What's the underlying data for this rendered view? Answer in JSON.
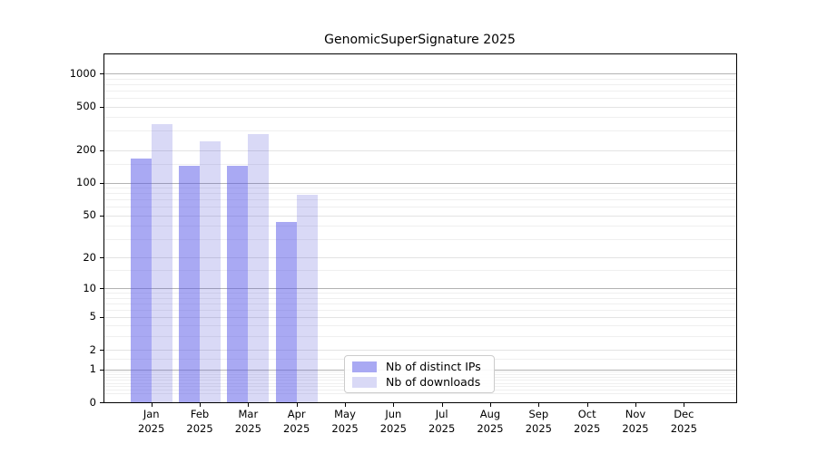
{
  "title": "GenomicSuperSignature 2025",
  "colors": {
    "bar_ips_fill": "rgba(83,83,231,0.5)",
    "bar_downloads_fill": "rgba(65,65,210,0.2)",
    "legend_swatch_ips": "#a9a9f3",
    "legend_swatch_downloads": "#d9d9f6",
    "grid_major": "#b3b3b3",
    "grid_mid": "#e3e3e3",
    "grid_minor": "#efefef",
    "axis": "#000000"
  },
  "legend": {
    "items": [
      {
        "label": "Nb of distinct IPs",
        "swatch": "legend_swatch_ips"
      },
      {
        "label": "Nb of downloads",
        "swatch": "legend_swatch_downloads"
      }
    ]
  },
  "chart_data": {
    "type": "bar",
    "title": "GenomicSuperSignature 2025",
    "categories": [
      "Jan",
      "Feb",
      "Mar",
      "Apr",
      "May",
      "Jun",
      "Jul",
      "Aug",
      "Sep",
      "Oct",
      "Nov",
      "Dec"
    ],
    "category_year": "2025",
    "series": [
      {
        "name": "Nb of distinct IPs",
        "values": [
          168,
          142,
          143,
          43,
          0,
          0,
          0,
          0,
          0,
          0,
          0,
          0
        ]
      },
      {
        "name": "Nb of downloads",
        "values": [
          345,
          242,
          278,
          78,
          0,
          0,
          0,
          0,
          0,
          0,
          0,
          0
        ]
      }
    ],
    "xlabel": "",
    "ylabel": "",
    "y_scale": "log1p",
    "y_ticks": [
      0,
      1,
      2,
      5,
      10,
      20,
      50,
      100,
      200,
      500,
      1000
    ],
    "y_major_gridlines": [
      1,
      10,
      100,
      1000
    ],
    "y_minor_gridlines": [
      0.2,
      0.3,
      0.4,
      0.5,
      0.6,
      0.7,
      0.8,
      0.9,
      1.5,
      3,
      4,
      6,
      7,
      8,
      9,
      15,
      30,
      40,
      60,
      70,
      80,
      90,
      150,
      300,
      400,
      600,
      700,
      800,
      900
    ],
    "ylim": [
      0,
      1500
    ],
    "grid": true,
    "legend_position": "inside-bottom-center"
  }
}
